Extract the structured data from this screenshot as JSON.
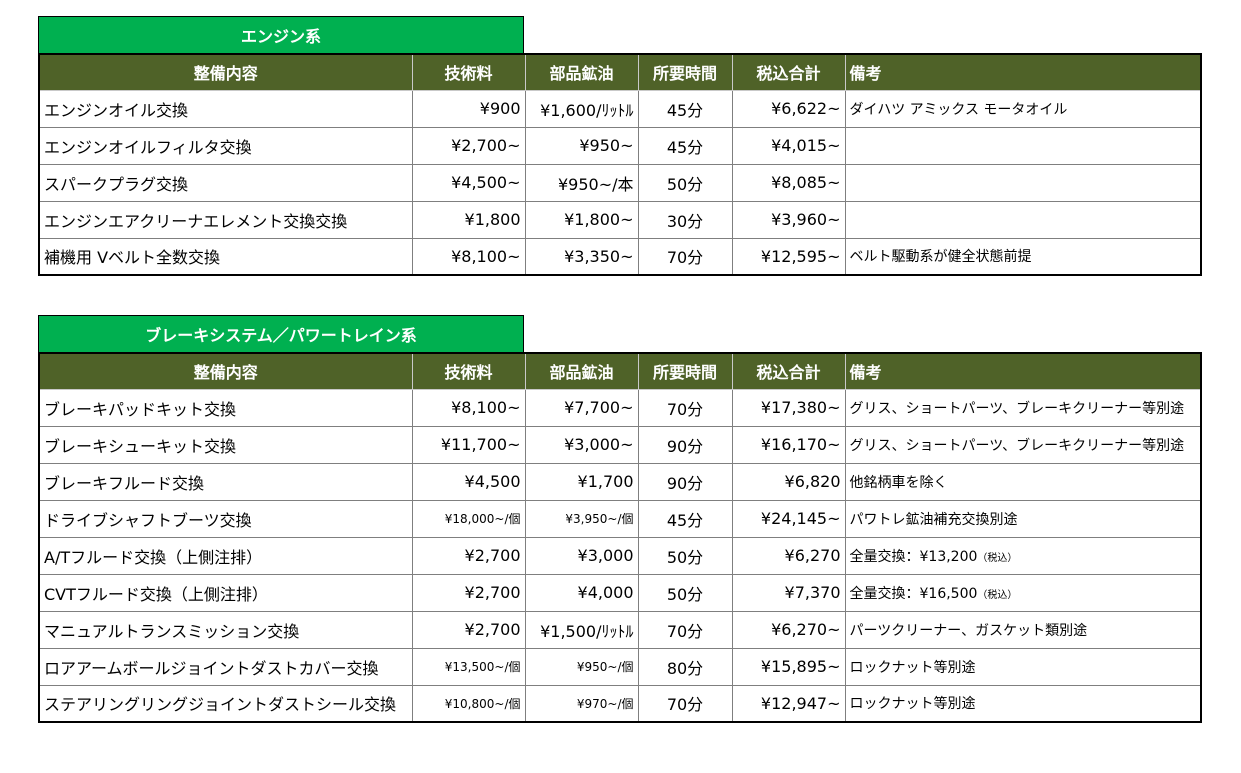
{
  "headers": [
    "整備内容",
    "技術料",
    "部品鉱油",
    "所要時間",
    "税込合計",
    "備考"
  ],
  "engine": {
    "title": "エンジン系",
    "rows": [
      {
        "name": "エンジンオイル交換",
        "labor": "¥900",
        "parts": "¥1,600/ﾘｯﾄﾙ",
        "time": "45分",
        "total": "¥6,622~",
        "note": "ダイハツ アミックス モータオイル"
      },
      {
        "name": "エンジンオイルフィルタ交換",
        "labor": "¥2,700~",
        "parts": "¥950~",
        "time": "45分",
        "total": "¥4,015~",
        "note": ""
      },
      {
        "name": "スパークプラグ交換",
        "labor": "¥4,500~",
        "parts": "¥950~/本",
        "time": "50分",
        "total": "¥8,085~",
        "note": ""
      },
      {
        "name": "エンジンエアクリーナエレメント交換交換",
        "labor": "¥1,800",
        "parts": "¥1,800~",
        "time": "30分",
        "total": "¥3,960~",
        "note": ""
      },
      {
        "name": "補機用 Vベルト全数交換",
        "labor": "¥8,100~",
        "parts": "¥3,350~",
        "time": "70分",
        "total": "¥12,595~",
        "note": "ベルト駆動系が健全状態前提"
      }
    ]
  },
  "brake": {
    "title": "ブレーキシステム／パワートレイン系",
    "rows": [
      {
        "name": "ブレーキパッドキット交換",
        "labor": "¥8,100~",
        "parts": "¥7,700~",
        "time": "70分",
        "total": "¥17,380~",
        "note": "グリス、ショートパーツ、ブレーキクリーナー等別途"
      },
      {
        "name": "ブレーキシューキット交換",
        "labor": "¥11,700~",
        "parts": "¥3,000~",
        "time": "90分",
        "total": "¥16,170~",
        "note": "グリス、ショートパーツ、ブレーキクリーナー等別途"
      },
      {
        "name": "ブレーキフルード交換",
        "labor": "¥4,500",
        "parts": "¥1,700",
        "time": "90分",
        "total": "¥6,820",
        "note": "他銘柄車を除く"
      },
      {
        "name": "ドライブシャフトブーツ交換",
        "labor": "¥18,000~/個",
        "parts": "¥3,950~/個",
        "time": "45分",
        "total": "¥24,145~",
        "note": "パワトレ鉱油補充交換別途"
      },
      {
        "name": "A/Tフルード交換（上側注排）",
        "labor": "¥2,700",
        "parts": "¥3,000",
        "time": "50分",
        "total": "¥6,270",
        "note": "全量交換：¥13,200",
        "note_suffix": "（税込）"
      },
      {
        "name": "CVTフルード交換（上側注排）",
        "labor": "¥2,700",
        "parts": "¥4,000",
        "time": "50分",
        "total": "¥7,370",
        "note": "全量交換：¥16,500",
        "note_suffix": "（税込）"
      },
      {
        "name": "マニュアルトランスミッション交換",
        "labor": "¥2,700",
        "parts": "¥1,500/ﾘｯﾄﾙ",
        "time": "70分",
        "total": "¥6,270~",
        "note": "パーツクリーナー、ガスケット類別途"
      },
      {
        "name": "ロアアームボールジョイントダストカバー交換",
        "labor": "¥13,500~/個",
        "parts": "¥950~/個",
        "time": "80分",
        "total": "¥15,895~",
        "note": "ロックナット等別途"
      },
      {
        "name": "ステアリングリングジョイントダストシール交換",
        "labor": "¥10,800~/個",
        "parts": "¥970~/個",
        "time": "70分",
        "total": "¥12,947~",
        "note": "ロックナット等別途"
      }
    ]
  }
}
